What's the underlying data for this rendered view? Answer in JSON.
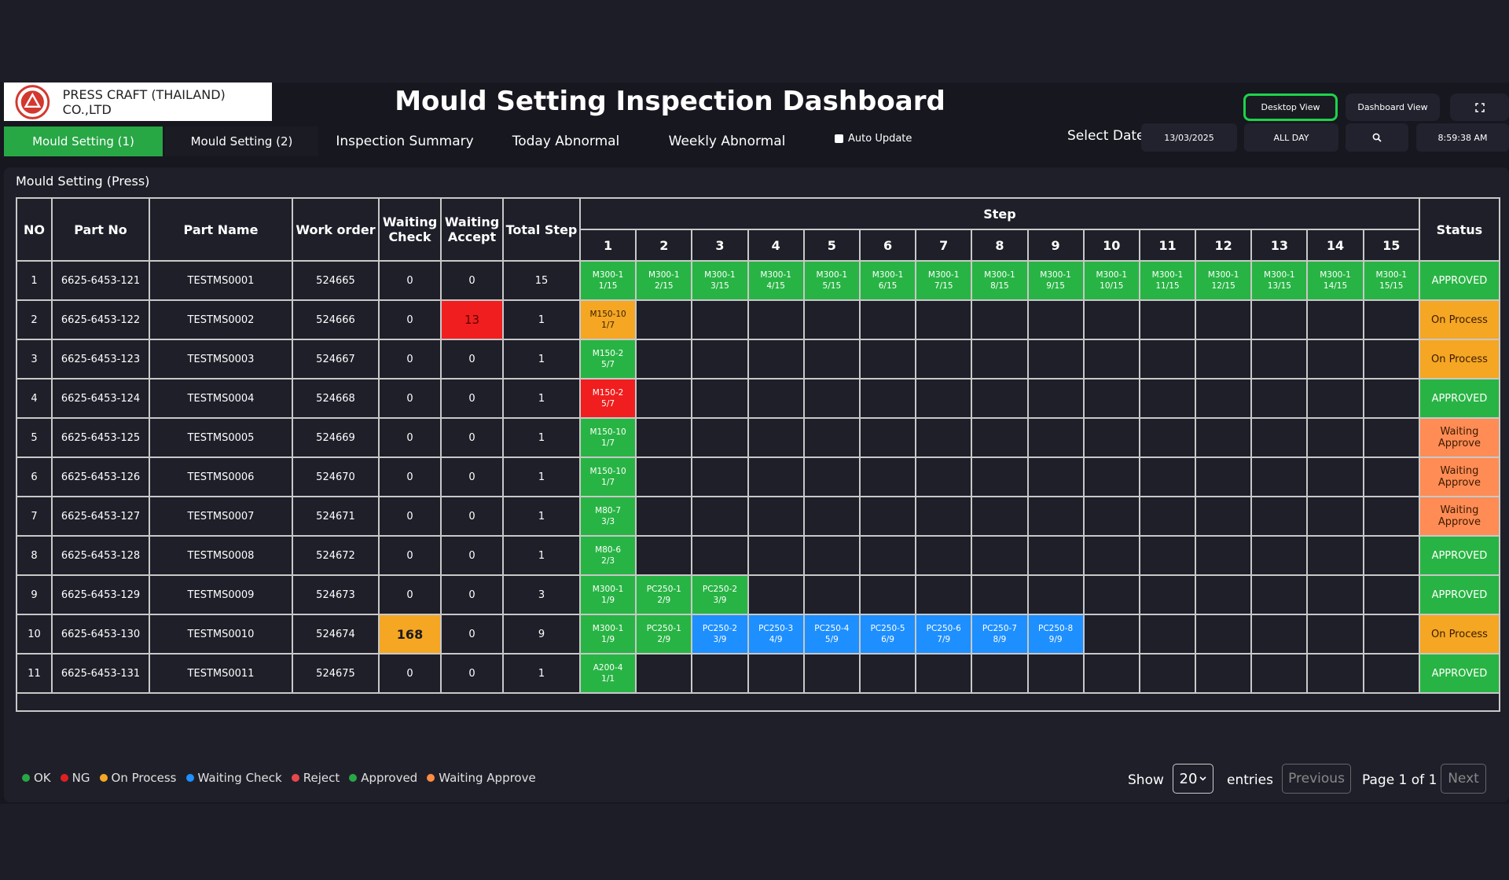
{
  "company": {
    "name": "PRESS CRAFT (THAILAND) CO.,LTD"
  },
  "title": "Mould Setting Inspection Dashboard",
  "header_buttons": {
    "desktop": "Desktop View",
    "dashboard": "Dashboard View",
    "fullscreen_icon": "expand-icon"
  },
  "tabs": [
    {
      "label": "Mould  Setting (1)",
      "active": true
    },
    {
      "label": "Mould  Setting (2)"
    },
    {
      "label": "Inspection Summary"
    },
    {
      "label": "Today Abnormal"
    },
    {
      "label": "Weekly Abnormal"
    }
  ],
  "auto_update": {
    "label": "Auto Update",
    "checked": false
  },
  "date_filter": {
    "label": "Select Date",
    "date": "13/03/2025",
    "range": "ALL DAY",
    "search_icon": "search-icon",
    "clock": "8:59:38 AM"
  },
  "panel_title": "Mould Setting (Press)",
  "table": {
    "headers": {
      "no": "NO",
      "part_no": "Part No",
      "part_name": "Part Name",
      "work_order": "Work order",
      "waiting_check": "Waiting Check",
      "waiting_accept": "Waiting Accept",
      "total_step": "Total Step",
      "step": "Step",
      "status": "Status"
    },
    "step_numbers": [
      "1",
      "2",
      "3",
      "4",
      "5",
      "6",
      "7",
      "8",
      "9",
      "10",
      "11",
      "12",
      "13",
      "14",
      "15"
    ],
    "rows": [
      {
        "no": "1",
        "part_no": "6625-6453-121",
        "part_name": "TESTMS0001",
        "work_order": "524665",
        "waiting_check": "0",
        "waiting_accept": "0",
        "total_step": "15",
        "status": "APPROVED",
        "status_color": "approved",
        "steps": [
          {
            "l1": "M300-1",
            "l2": "1/15",
            "c": "green"
          },
          {
            "l1": "M300-1",
            "l2": "2/15",
            "c": "green"
          },
          {
            "l1": "M300-1",
            "l2": "3/15",
            "c": "green"
          },
          {
            "l1": "M300-1",
            "l2": "4/15",
            "c": "green"
          },
          {
            "l1": "M300-1",
            "l2": "5/15",
            "c": "green"
          },
          {
            "l1": "M300-1",
            "l2": "6/15",
            "c": "green"
          },
          {
            "l1": "M300-1",
            "l2": "7/15",
            "c": "green"
          },
          {
            "l1": "M300-1",
            "l2": "8/15",
            "c": "green"
          },
          {
            "l1": "M300-1",
            "l2": "9/15",
            "c": "green"
          },
          {
            "l1": "M300-1",
            "l2": "10/15",
            "c": "green"
          },
          {
            "l1": "M300-1",
            "l2": "11/15",
            "c": "green"
          },
          {
            "l1": "M300-1",
            "l2": "12/15",
            "c": "green"
          },
          {
            "l1": "M300-1",
            "l2": "13/15",
            "c": "green"
          },
          {
            "l1": "M300-1",
            "l2": "14/15",
            "c": "green"
          },
          {
            "l1": "M300-1",
            "l2": "15/15",
            "c": "green"
          }
        ]
      },
      {
        "no": "2",
        "part_no": "6625-6453-122",
        "part_name": "TESTMS0002",
        "work_order": "524666",
        "waiting_check": "0",
        "waiting_accept": "13",
        "wa_highlight": "red",
        "total_step": "1",
        "status": "On Process",
        "status_color": "process",
        "steps": [
          {
            "l1": "M150-10",
            "l2": "1/7",
            "c": "orange"
          }
        ]
      },
      {
        "no": "3",
        "part_no": "6625-6453-123",
        "part_name": "TESTMS0003",
        "work_order": "524667",
        "waiting_check": "0",
        "waiting_accept": "0",
        "total_step": "1",
        "status": "On Process",
        "status_color": "process",
        "steps": [
          {
            "l1": "M150-2",
            "l2": "5/7",
            "c": "green"
          }
        ]
      },
      {
        "no": "4",
        "part_no": "6625-6453-124",
        "part_name": "TESTMS0004",
        "work_order": "524668",
        "waiting_check": "0",
        "waiting_accept": "0",
        "total_step": "1",
        "status": "APPROVED",
        "status_color": "approved",
        "steps": [
          {
            "l1": "M150-2",
            "l2": "5/7",
            "c": "red"
          }
        ]
      },
      {
        "no": "5",
        "part_no": "6625-6453-125",
        "part_name": "TESTMS0005",
        "work_order": "524669",
        "waiting_check": "0",
        "waiting_accept": "0",
        "total_step": "1",
        "status": "Waiting Approve",
        "status_color": "waiting",
        "steps": [
          {
            "l1": "M150-10",
            "l2": "1/7",
            "c": "green"
          }
        ]
      },
      {
        "no": "6",
        "part_no": "6625-6453-126",
        "part_name": "TESTMS0006",
        "work_order": "524670",
        "waiting_check": "0",
        "waiting_accept": "0",
        "total_step": "1",
        "status": "Waiting Approve",
        "status_color": "waiting",
        "steps": [
          {
            "l1": "M150-10",
            "l2": "1/7",
            "c": "green"
          }
        ]
      },
      {
        "no": "7",
        "part_no": "6625-6453-127",
        "part_name": "TESTMS0007",
        "work_order": "524671",
        "waiting_check": "0",
        "waiting_accept": "0",
        "total_step": "1",
        "status": "Waiting Approve",
        "status_color": "waiting",
        "steps": [
          {
            "l1": "M80-7",
            "l2": "3/3",
            "c": "green"
          }
        ]
      },
      {
        "no": "8",
        "part_no": "6625-6453-128",
        "part_name": "TESTMS0008",
        "work_order": "524672",
        "waiting_check": "0",
        "waiting_accept": "0",
        "total_step": "1",
        "status": "APPROVED",
        "status_color": "approved",
        "steps": [
          {
            "l1": "M80-6",
            "l2": "2/3",
            "c": "green"
          }
        ]
      },
      {
        "no": "9",
        "part_no": "6625-6453-129",
        "part_name": "TESTMS0009",
        "work_order": "524673",
        "waiting_check": "0",
        "waiting_accept": "0",
        "total_step": "3",
        "status": "APPROVED",
        "status_color": "approved",
        "steps": [
          {
            "l1": "M300-1",
            "l2": "1/9",
            "c": "green"
          },
          {
            "l1": "PC250-1",
            "l2": "2/9",
            "c": "green"
          },
          {
            "l1": "PC250-2",
            "l2": "3/9",
            "c": "green"
          }
        ]
      },
      {
        "no": "10",
        "part_no": "6625-6453-130",
        "part_name": "TESTMS0010",
        "work_order": "524674",
        "waiting_check": "168",
        "wc_highlight": "orange",
        "waiting_accept": "0",
        "total_step": "9",
        "status": "On Process",
        "status_color": "process",
        "steps": [
          {
            "l1": "M300-1",
            "l2": "1/9",
            "c": "green"
          },
          {
            "l1": "PC250-1",
            "l2": "2/9",
            "c": "green"
          },
          {
            "l1": "PC250-2",
            "l2": "3/9",
            "c": "blue"
          },
          {
            "l1": "PC250-3",
            "l2": "4/9",
            "c": "blue"
          },
          {
            "l1": "PC250-4",
            "l2": "5/9",
            "c": "blue"
          },
          {
            "l1": "PC250-5",
            "l2": "6/9",
            "c": "blue"
          },
          {
            "l1": "PC250-6",
            "l2": "7/9",
            "c": "blue"
          },
          {
            "l1": "PC250-7",
            "l2": "8/9",
            "c": "blue"
          },
          {
            "l1": "PC250-8",
            "l2": "9/9",
            "c": "blue"
          }
        ]
      },
      {
        "no": "11",
        "part_no": "6625-6453-131",
        "part_name": "TESTMS0011",
        "work_order": "524675",
        "waiting_check": "0",
        "waiting_accept": "0",
        "total_step": "1",
        "status": "APPROVED",
        "status_color": "approved",
        "steps": [
          {
            "l1": "A200-4",
            "l2": "1/1",
            "c": "green"
          }
        ]
      }
    ]
  },
  "legend": [
    {
      "label": "OK",
      "color": "#28a745"
    },
    {
      "label": "NG",
      "color": "#e02020"
    },
    {
      "label": "On Process",
      "color": "#f5a623"
    },
    {
      "label": "Waiting Check",
      "color": "#1e90ff"
    },
    {
      "label": "Reject",
      "color": "#e8474c"
    },
    {
      "label": "Approved",
      "color": "#28a745"
    },
    {
      "label": "Waiting Approve",
      "color": "#ff8c42"
    }
  ],
  "pagination": {
    "show": "Show",
    "entries_value": "20",
    "entries": "entries",
    "previous": "Previous",
    "page_info": "Page 1 of 1",
    "next": "Next"
  },
  "colors": {
    "green": "#28b444",
    "orange": "#f5a623",
    "red": "#f01e1e",
    "blue": "#1e8fff",
    "approved": "#28b444",
    "process": "#f5a623",
    "waiting": "#ff8c55",
    "accent": "#1ed34a"
  }
}
